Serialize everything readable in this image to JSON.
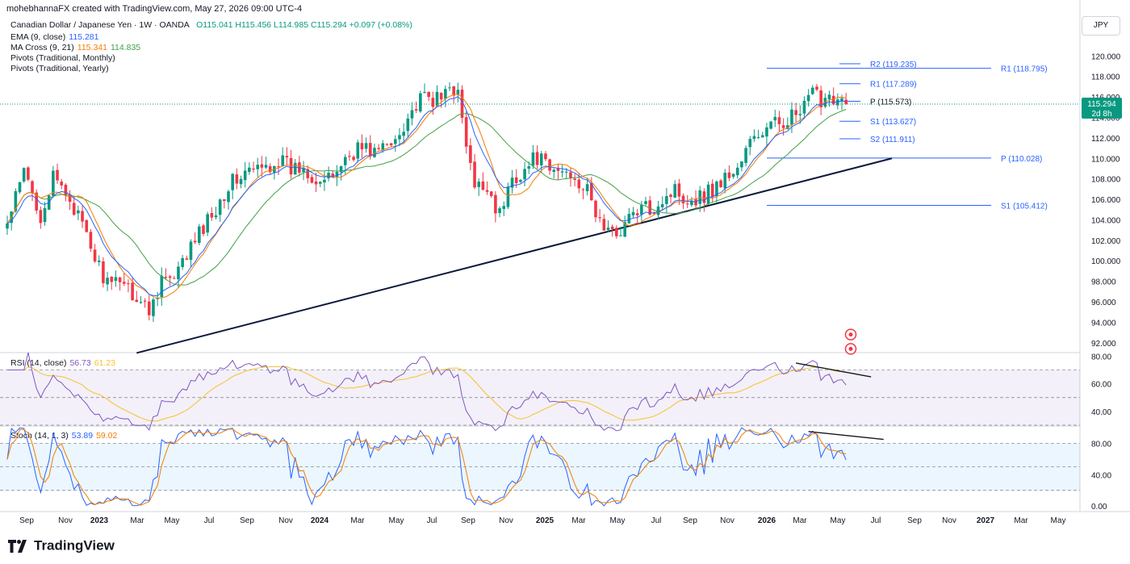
{
  "header": {
    "attribution": "mohebhannaFX created with TradingView.com, May 27, 2026 09:00 UTC-4"
  },
  "currency_button": "JPY",
  "legend": {
    "symbol": "Canadian Dollar / Japanese Yen · 1W · OANDA",
    "ohlc": "O115.041 H115.456 L114.985 C115.294 +0.097 (+0.08%)",
    "ema_label": "EMA (9, close)",
    "ema_value": "115.281",
    "ma_label": "MA Cross (9, 21)",
    "ma_value1": "115.341",
    "ma_value2": "114.835",
    "pivot_monthly": "Pivots (Traditional, Monthly)",
    "pivot_yearly": "Pivots (Traditional, Yearly)",
    "rsi_label": "RSI (14, close)",
    "rsi_value": "56.73",
    "rsi_ma": "61.23",
    "stoch_label": "Stoch (14, 1, 3)",
    "stoch_k": "53.89",
    "stoch_d": "59.02"
  },
  "price_tag": {
    "value": "115.294",
    "countdown": "2d 8h"
  },
  "colors": {
    "up": "#089981",
    "down": "#f23645",
    "ema": "#2962ff",
    "ma_fast": "#f57c00",
    "ma_slow": "#43a047",
    "pivot": "#2962ff",
    "rsi": "#7e57c2",
    "rsi_ma": "#f9c02e",
    "stoch_k": "#2962ff",
    "stoch_d": "#f57c00",
    "trendline": "#0b1a3c"
  },
  "brand": "TradingView",
  "chart_data": {
    "type": "candlestick",
    "price_axis": {
      "ticks": [
        "120.000",
        "118.000",
        "116.000",
        "114.000",
        "112.000",
        "110.000",
        "108.000",
        "106.000",
        "104.000",
        "102.000",
        "100.000",
        "98.000",
        "96.000",
        "94.000",
        "92.000"
      ],
      "ylim": [
        90.8,
        121.6
      ]
    },
    "rsi_axis": {
      "ticks": [
        "80.00",
        "60.00",
        "40.00"
      ],
      "ylim": [
        30,
        82
      ],
      "bands": [
        70,
        50,
        30
      ]
    },
    "stoch_axis": {
      "ticks": [
        "80.00",
        "40.00",
        "0.00"
      ],
      "ylim": [
        -6,
        100
      ],
      "bands": [
        80,
        50,
        20
      ]
    },
    "time_axis": [
      "Sep",
      "Nov",
      "2023",
      "Mar",
      "May",
      "Jul",
      "Sep",
      "Nov",
      "2024",
      "Mar",
      "May",
      "Jul",
      "Sep",
      "Nov",
      "2025",
      "Mar",
      "May",
      "Jul",
      "Sep",
      "Nov",
      "2026",
      "Mar",
      "May",
      "Jul",
      "Sep",
      "Nov",
      "2027",
      "Mar",
      "May"
    ],
    "time_axis_bold": [
      "2023",
      "2024",
      "2025",
      "2026",
      "2027"
    ],
    "price_anchors": [
      [
        0,
        103.5
      ],
      [
        4,
        108.6
      ],
      [
        8,
        104.5
      ],
      [
        11,
        107.9
      ],
      [
        15,
        106.2
      ],
      [
        19,
        102.2
      ],
      [
        22,
        99.4
      ],
      [
        25,
        97.1
      ],
      [
        27,
        98.6
      ],
      [
        31,
        96.4
      ],
      [
        34,
        95.1
      ],
      [
        37,
        98.4
      ],
      [
        40,
        97.9
      ],
      [
        43,
        100.6
      ],
      [
        46,
        102.6
      ],
      [
        49,
        104.6
      ],
      [
        53,
        107.4
      ],
      [
        57,
        108.6
      ],
      [
        61,
        108.9
      ],
      [
        65,
        109.9
      ],
      [
        68,
        108.9
      ],
      [
        71,
        109.2
      ],
      [
        74,
        108.1
      ],
      [
        77,
        107.7
      ],
      [
        80,
        109.5
      ],
      [
        84,
        111.1
      ],
      [
        88,
        110.7
      ],
      [
        92,
        111.3
      ],
      [
        96,
        114.2
      ],
      [
        100,
        115.9
      ],
      [
        104,
        115.6
      ],
      [
        106,
        117.6
      ],
      [
        108,
        116.1
      ],
      [
        110,
        111.2
      ],
      [
        112,
        106.9
      ],
      [
        115,
        107.4
      ],
      [
        118,
        104.4
      ],
      [
        121,
        108.1
      ],
      [
        124,
        108.9
      ],
      [
        127,
        110.2
      ],
      [
        130,
        108.6
      ],
      [
        133,
        108.8
      ],
      [
        136,
        108.4
      ],
      [
        139,
        106.6
      ],
      [
        142,
        103.8
      ],
      [
        145,
        102.4
      ],
      [
        148,
        103.7
      ],
      [
        151,
        104.9
      ],
      [
        154,
        105.1
      ],
      [
        157,
        106.1
      ],
      [
        160,
        107.0
      ],
      [
        163,
        106.1
      ],
      [
        166,
        106.3
      ],
      [
        169,
        107.0
      ],
      [
        172,
        108.1
      ],
      [
        175,
        109.0
      ],
      [
        178,
        111.5
      ],
      [
        181,
        112.6
      ],
      [
        184,
        113.3
      ],
      [
        187,
        114.0
      ],
      [
        190,
        114.2
      ],
      [
        193,
        116.3
      ],
      [
        195,
        115.8
      ],
      [
        197,
        116.4
      ],
      [
        199,
        115.8
      ],
      [
        201,
        115.3
      ]
    ],
    "last_close": 115.294,
    "pivots_monthly": [
      {
        "label": "R2 (119.235)",
        "price": 119.235
      },
      {
        "label": "R1 (117.289)",
        "price": 117.289
      },
      {
        "label": "P (115.573)",
        "price": 115.573
      },
      {
        "label": "S1 (113.627)",
        "price": 113.627
      },
      {
        "label": "S2 (111.911)",
        "price": 111.911
      }
    ],
    "pivots_yearly": [
      {
        "label": "R1 (118.795)",
        "price": 118.795
      },
      {
        "label": "P (110.028)",
        "price": 110.028
      },
      {
        "label": "S1 (105.412)",
        "price": 105.412
      }
    ],
    "trendline": {
      "from": {
        "week": 31,
        "price": 91.0
      },
      "to": {
        "week": 212,
        "price": 110.0
      }
    },
    "rsi_div": {
      "from": {
        "week": 189,
        "value": 75
      },
      "to": {
        "week": 207,
        "value": 65
      }
    },
    "stoch_div": {
      "from": {
        "week": 192,
        "value": 95
      },
      "to": {
        "week": 210,
        "value": 85
      }
    }
  }
}
